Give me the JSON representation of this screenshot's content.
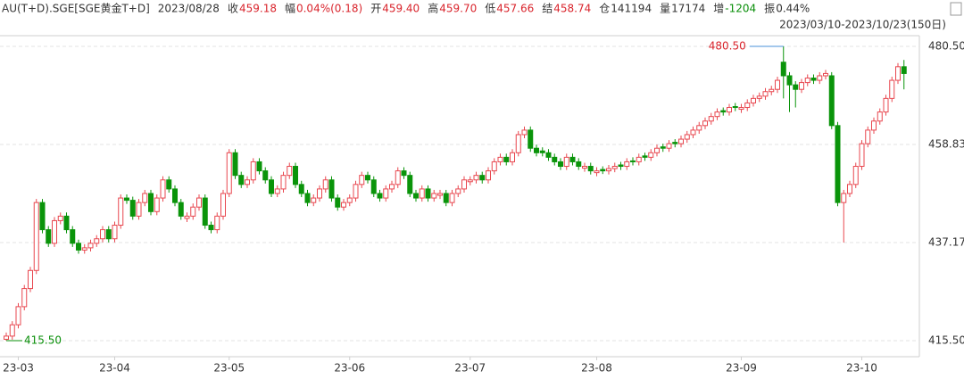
{
  "header": {
    "items": [
      {
        "value": "AU(T+D).SGE[SGE黄金T+D]",
        "color": "#333333"
      },
      {
        "value": "2023/08/28",
        "color": "#333333"
      },
      {
        "label": "收",
        "value": "459.18",
        "color": "#d9242c"
      },
      {
        "label": "幅",
        "value": "0.04%(0.18)",
        "color": "#d9242c"
      },
      {
        "label": "开",
        "value": "459.40",
        "color": "#d9242c"
      },
      {
        "label": "高",
        "value": "459.70",
        "color": "#d9242c"
      },
      {
        "label": "低",
        "value": "457.66",
        "color": "#d9242c"
      },
      {
        "label": "结",
        "value": "458.74",
        "color": "#d9242c"
      },
      {
        "label": "仓",
        "value": "141194",
        "color": "#333333"
      },
      {
        "label": "量",
        "value": "17174",
        "color": "#333333"
      },
      {
        "label": "增",
        "value": "-1204",
        "color": "#0a8f0a"
      },
      {
        "label": "振",
        "value": "0.44%",
        "color": "#333333"
      }
    ],
    "range": "2023/03/10-2023/10/23(150日)"
  },
  "chart_data": {
    "type": "candlestick",
    "up_color": "#e8474f",
    "down_color": "#0a940a",
    "grid": true,
    "ylim": [
      411.95,
      482.86
    ],
    "yticks": [
      {
        "value": 480.5,
        "label": "480.50"
      },
      458.83,
      437.17,
      {
        "value": 415.5,
        "label": "415.50"
      }
    ],
    "annotations": [
      {
        "value": 480.5,
        "label": "480.50",
        "color": "#d9242c",
        "line_color": "#4a90d9"
      },
      {
        "value": 415.5,
        "label": "415.50",
        "color": "#0a8f0a",
        "line_color": "#0a8f0a"
      }
    ],
    "categories": [
      null,
      null,
      "23-03",
      null,
      null,
      null,
      null,
      null,
      null,
      null,
      null,
      null,
      null,
      null,
      null,
      null,
      null,
      null,
      "23-04",
      null,
      null,
      null,
      null,
      null,
      null,
      null,
      null,
      null,
      null,
      null,
      null,
      null,
      null,
      null,
      null,
      null,
      null,
      "23-05",
      null,
      null,
      null,
      null,
      null,
      null,
      null,
      null,
      null,
      null,
      null,
      null,
      null,
      null,
      null,
      null,
      null,
      null,
      null,
      "23-06",
      null,
      null,
      null,
      null,
      null,
      null,
      null,
      null,
      null,
      null,
      null,
      null,
      null,
      null,
      null,
      null,
      null,
      null,
      null,
      "23-07",
      null,
      null,
      null,
      null,
      null,
      null,
      null,
      null,
      null,
      null,
      null,
      null,
      null,
      null,
      null,
      null,
      null,
      null,
      null,
      null,
      "23-08",
      null,
      null,
      null,
      null,
      null,
      null,
      null,
      null,
      null,
      null,
      null,
      null,
      null,
      null,
      null,
      null,
      null,
      null,
      null,
      null,
      null,
      null,
      null,
      "23-09",
      null,
      null,
      null,
      null,
      null,
      null,
      null,
      null,
      null,
      null,
      null,
      null,
      null,
      null,
      null,
      null,
      null,
      null,
      null,
      "23-10",
      null,
      null,
      null,
      null,
      null,
      null,
      null
    ],
    "ohlc": [
      [
        415.8,
        417.3,
        415.5,
        416.5
      ],
      [
        416.5,
        419.8,
        415.7,
        419
      ],
      [
        419,
        423.8,
        418.2,
        423
      ],
      [
        423,
        427.8,
        422.2,
        427
      ],
      [
        427,
        431.8,
        426.2,
        431
      ],
      [
        431,
        446.8,
        430.2,
        446
      ],
      [
        446,
        446.8,
        439.2,
        440
      ],
      [
        440,
        440.8,
        436.2,
        437
      ],
      [
        437,
        442.8,
        436.2,
        442
      ],
      [
        442,
        443.8,
        441.2,
        443
      ],
      [
        443,
        443.8,
        439.2,
        440
      ],
      [
        440,
        440.8,
        436.2,
        437
      ],
      [
        437,
        437.8,
        434.7,
        435.5
      ],
      [
        435.5,
        436.8,
        434.7,
        436
      ],
      [
        436,
        437.8,
        435.2,
        437
      ],
      [
        437,
        438.8,
        436.2,
        438
      ],
      [
        438,
        440.8,
        437.2,
        440
      ],
      [
        440,
        440.8,
        437.2,
        438
      ],
      [
        438,
        441.8,
        437.2,
        441
      ],
      [
        441,
        447.8,
        440.2,
        447
      ],
      [
        447,
        447.8,
        445.7,
        446.5
      ],
      [
        446.5,
        447.3,
        442.2,
        443
      ],
      [
        443,
        446.8,
        442.2,
        446
      ],
      [
        446,
        448.8,
        445.2,
        448
      ],
      [
        448,
        448.8,
        443.2,
        444
      ],
      [
        444,
        447.8,
        443.2,
        447
      ],
      [
        447,
        451.8,
        446.2,
        451
      ],
      [
        451,
        451.8,
        448.2,
        449
      ],
      [
        449,
        449.8,
        445.2,
        446
      ],
      [
        446,
        446.8,
        442.2,
        443
      ],
      [
        442.5,
        443.8,
        441.7,
        443
      ],
      [
        443,
        445.8,
        442.2,
        445
      ],
      [
        445,
        447.8,
        444.2,
        447
      ],
      [
        447,
        447.8,
        440.2,
        441
      ],
      [
        441,
        441.8,
        439.2,
        440
      ],
      [
        440,
        443.8,
        439.2,
        443
      ],
      [
        443,
        448.8,
        442.2,
        448
      ],
      [
        448,
        457.8,
        447.2,
        457
      ],
      [
        457,
        457.8,
        451.2,
        452
      ],
      [
        452,
        452.8,
        449.2,
        450
      ],
      [
        450,
        451.8,
        449.2,
        451
      ],
      [
        451,
        455.8,
        450.2,
        455
      ],
      [
        455,
        455.8,
        452.2,
        453
      ],
      [
        453,
        453.8,
        450.2,
        451
      ],
      [
        451,
        451.8,
        447.2,
        448
      ],
      [
        448,
        449.8,
        447.2,
        449
      ],
      [
        449,
        452.8,
        448.2,
        452
      ],
      [
        452,
        454.8,
        451.2,
        454
      ],
      [
        454,
        454.8,
        449.2,
        450
      ],
      [
        450,
        450.8,
        447.2,
        448
      ],
      [
        448,
        448.8,
        445.2,
        446
      ],
      [
        446,
        447.8,
        445.2,
        447
      ],
      [
        447,
        449.8,
        446.2,
        449
      ],
      [
        449,
        451.8,
        448.2,
        451
      ],
      [
        451,
        451.8,
        446.2,
        447
      ],
      [
        447,
        447.8,
        444.2,
        445
      ],
      [
        445,
        446.8,
        444.2,
        446
      ],
      [
        446,
        447.8,
        445.2,
        447
      ],
      [
        447,
        450.8,
        446.2,
        450
      ],
      [
        450,
        452.8,
        449.2,
        452
      ],
      [
        452,
        452.8,
        450.2,
        451
      ],
      [
        451,
        451.8,
        447.2,
        448
      ],
      [
        448,
        448.8,
        446.2,
        447
      ],
      [
        447,
        449.8,
        446.2,
        449
      ],
      [
        449,
        450.8,
        448.2,
        450
      ],
      [
        450,
        453.8,
        449.2,
        453
      ],
      [
        453,
        453.8,
        451.2,
        452
      ],
      [
        452,
        452.8,
        447.2,
        448
      ],
      [
        448,
        448.8,
        446.2,
        447
      ],
      [
        447,
        449.8,
        446.2,
        449
      ],
      [
        449,
        449.8,
        446.2,
        447
      ],
      [
        447,
        448.8,
        446.2,
        448
      ],
      [
        447.6,
        448.8,
        446.8,
        448
      ],
      [
        448,
        448.8,
        445.2,
        446
      ],
      [
        446,
        448.8,
        445.2,
        448
      ],
      [
        448,
        449.8,
        447.2,
        449
      ],
      [
        449,
        451.8,
        448.2,
        451
      ],
      [
        450.6,
        451.8,
        449.8,
        451
      ],
      [
        451,
        452.8,
        450.2,
        452
      ],
      [
        452,
        452.8,
        450.2,
        451
      ],
      [
        451,
        453.8,
        450.2,
        453
      ],
      [
        453,
        455.8,
        452.2,
        455
      ],
      [
        455,
        456.8,
        454.2,
        456
      ],
      [
        456,
        456.8,
        454.2,
        455
      ],
      [
        455,
        457.8,
        454.2,
        457
      ],
      [
        457,
        461.8,
        456.2,
        461
      ],
      [
        461,
        462.8,
        460.2,
        462
      ],
      [
        462,
        462.8,
        457.2,
        458
      ],
      [
        458,
        458.8,
        456.2,
        457
      ],
      [
        457.4,
        458.2,
        456.2,
        457
      ],
      [
        457,
        457.8,
        455.2,
        456
      ],
      [
        456,
        456.8,
        454.2,
        455
      ],
      [
        455,
        455.8,
        453.2,
        454
      ],
      [
        454,
        456.8,
        453.2,
        456
      ],
      [
        456,
        456.8,
        454.2,
        455
      ],
      [
        455,
        455.8,
        453.2,
        454
      ],
      [
        453.6,
        454.8,
        452.8,
        454
      ],
      [
        454,
        454.8,
        452.2,
        453
      ],
      [
        452.6,
        453.8,
        451.8,
        453
      ],
      [
        453.3,
        454,
        452.3,
        453
      ],
      [
        453,
        454.3,
        452.2,
        453.5
      ],
      [
        453.5,
        454.8,
        452.7,
        454
      ],
      [
        454.3,
        455,
        453.2,
        454
      ],
      [
        454,
        455.8,
        453.2,
        455
      ],
      [
        455.2,
        456,
        454.2,
        455
      ],
      [
        455,
        456.8,
        454.2,
        456
      ],
      [
        456.3,
        457,
        455.2,
        456
      ],
      [
        456,
        457.8,
        455.2,
        457
      ],
      [
        457,
        458.8,
        456.2,
        458
      ],
      [
        458.3,
        459,
        457.2,
        458
      ],
      [
        458,
        459.8,
        457.2,
        459
      ],
      [
        459.3,
        460,
        458.2,
        459
      ],
      [
        459,
        460.8,
        458.2,
        460
      ],
      [
        460,
        461.8,
        459.2,
        461
      ],
      [
        461,
        462.8,
        460.2,
        462
      ],
      [
        462,
        463.8,
        461.2,
        463
      ],
      [
        463,
        464.8,
        462.2,
        464
      ],
      [
        464,
        465.8,
        463.2,
        465
      ],
      [
        465,
        466.8,
        464.2,
        466
      ],
      [
        466.3,
        467,
        465.2,
        466
      ],
      [
        466,
        467.8,
        465.2,
        467
      ],
      [
        467.2,
        468,
        466.2,
        467
      ],
      [
        466.6,
        467.8,
        465.8,
        467
      ],
      [
        467,
        468.8,
        466.2,
        468
      ],
      [
        468,
        469.8,
        467.2,
        469
      ],
      [
        469,
        470.3,
        468.2,
        469.5
      ],
      [
        469.5,
        471.3,
        468.7,
        470.5
      ],
      [
        470.5,
        471.8,
        469.7,
        471
      ],
      [
        471,
        473.8,
        470.2,
        473
      ],
      [
        477,
        480.5,
        469,
        474
      ],
      [
        474,
        474.8,
        466,
        472
      ],
      [
        472,
        472.8,
        467,
        471
      ],
      [
        471,
        473.3,
        470.2,
        472.5
      ],
      [
        472.5,
        474.3,
        471.7,
        473.5
      ],
      [
        473.5,
        474.3,
        472.2,
        473
      ],
      [
        473,
        474.8,
        472.2,
        474
      ],
      [
        474,
        475.3,
        473.2,
        474.5
      ],
      [
        474,
        474.8,
        462.2,
        463
      ],
      [
        463,
        463.8,
        445.2,
        446
      ],
      [
        446,
        448.8,
        437.17,
        448
      ],
      [
        448,
        450.8,
        447.2,
        450
      ],
      [
        450,
        454.8,
        449.2,
        454
      ],
      [
        454,
        459.8,
        453.2,
        459
      ],
      [
        459,
        462.8,
        458.2,
        462
      ],
      [
        462,
        464.8,
        461.2,
        464
      ],
      [
        464,
        466.8,
        463.2,
        466
      ],
      [
        466,
        469.8,
        465.2,
        469
      ],
      [
        469,
        473.8,
        468.2,
        473
      ],
      [
        473,
        476.8,
        472.2,
        476
      ],
      [
        476,
        477.5,
        471,
        474.5
      ]
    ]
  }
}
